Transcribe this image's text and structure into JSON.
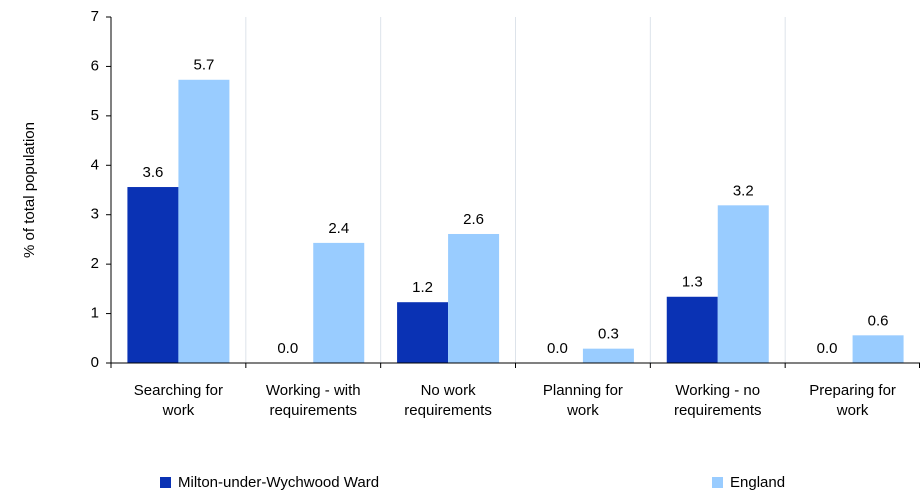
{
  "chart_data": {
    "type": "bar",
    "y_label": "% of total population",
    "categories": [
      [
        "Searching for",
        "work"
      ],
      [
        "Working - with",
        "requirements"
      ],
      [
        "No work",
        "requirements"
      ],
      [
        "Planning for",
        "work"
      ],
      [
        "Working - no",
        "requirements"
      ],
      [
        "Preparing for",
        "work"
      ]
    ],
    "series": [
      {
        "name": "Milton-under-Wychwood Ward",
        "color": "#0a32b4",
        "values": [
          3.56,
          0,
          1.23,
          0,
          1.34,
          0
        ],
        "value_labels": [
          "3.6",
          "0.0",
          "1.2",
          "0.0",
          "1.3",
          "0.0"
        ]
      },
      {
        "name": "England",
        "color": "#99ccff",
        "values": [
          5.73,
          2.43,
          2.61,
          0.29,
          3.19,
          0.56
        ],
        "value_labels": [
          "5.7",
          "2.4",
          "2.6",
          "0.3",
          "3.2",
          "0.6"
        ]
      }
    ],
    "ylim": [
      0,
      7
    ],
    "yticks": [
      0,
      1,
      2,
      3,
      4,
      5,
      6,
      7
    ],
    "legend": "bottom"
  }
}
